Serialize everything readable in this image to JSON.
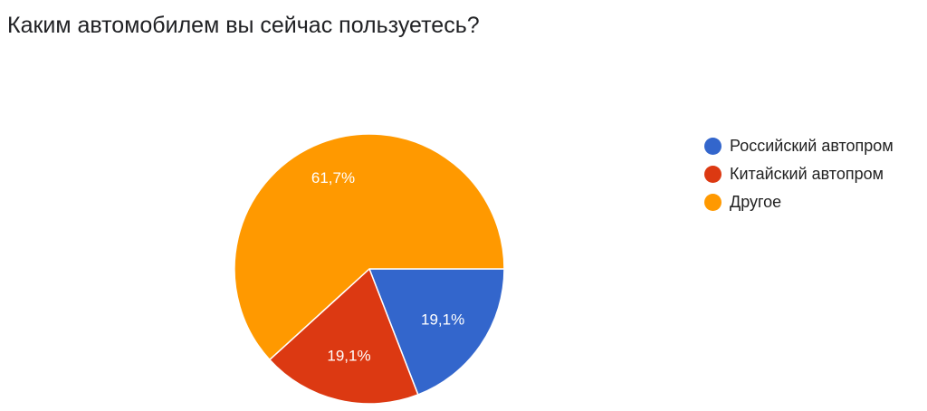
{
  "chart_data": {
    "type": "pie",
    "title": "Каким автомобилем вы сейчас пользуетесь?",
    "legend_position": "right",
    "slices": [
      {
        "label": "Российский автопром",
        "value": 19.1,
        "value_label": "19,1%",
        "color": "#3366cc"
      },
      {
        "label": "Китайский автопром",
        "value": 19.1,
        "value_label": "19,1%",
        "color": "#dc3912"
      },
      {
        "label": "Другое",
        "value": 61.7,
        "value_label": "61,7%",
        "color": "#ff9900"
      }
    ]
  }
}
